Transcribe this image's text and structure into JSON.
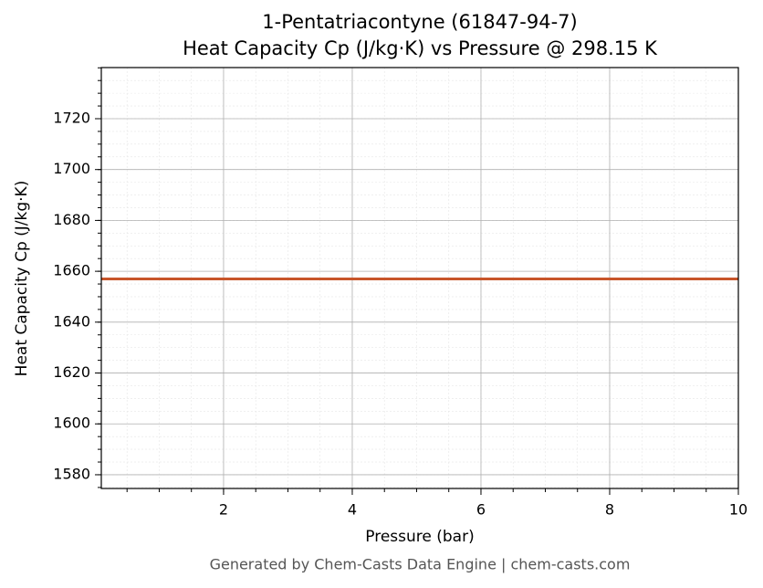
{
  "chart_data": {
    "type": "line",
    "title": "1-Pentatriacontyne (61847-94-7)",
    "subtitle": "Heat Capacity Cp (J/kg·K) vs Pressure @ 298.15 K",
    "x_label": "Pressure (bar)",
    "y_label": "Heat Capacity Cp (J/kg·K)",
    "footer": "Generated by Chem-Casts Data Engine | chem-casts.com",
    "x": [
      0.1,
      10
    ],
    "series": [
      {
        "name": "Cp",
        "color": "#c8552a",
        "values": [
          1657,
          1657
        ]
      }
    ],
    "xlim": [
      0.1,
      10
    ],
    "xticks": [
      2,
      4,
      6,
      8,
      10
    ],
    "ylim": [
      1574.6,
      1740.1
    ],
    "yticks": [
      1580,
      1600,
      1620,
      1640,
      1660,
      1680,
      1700,
      1720
    ],
    "grid": true,
    "legend": false
  }
}
